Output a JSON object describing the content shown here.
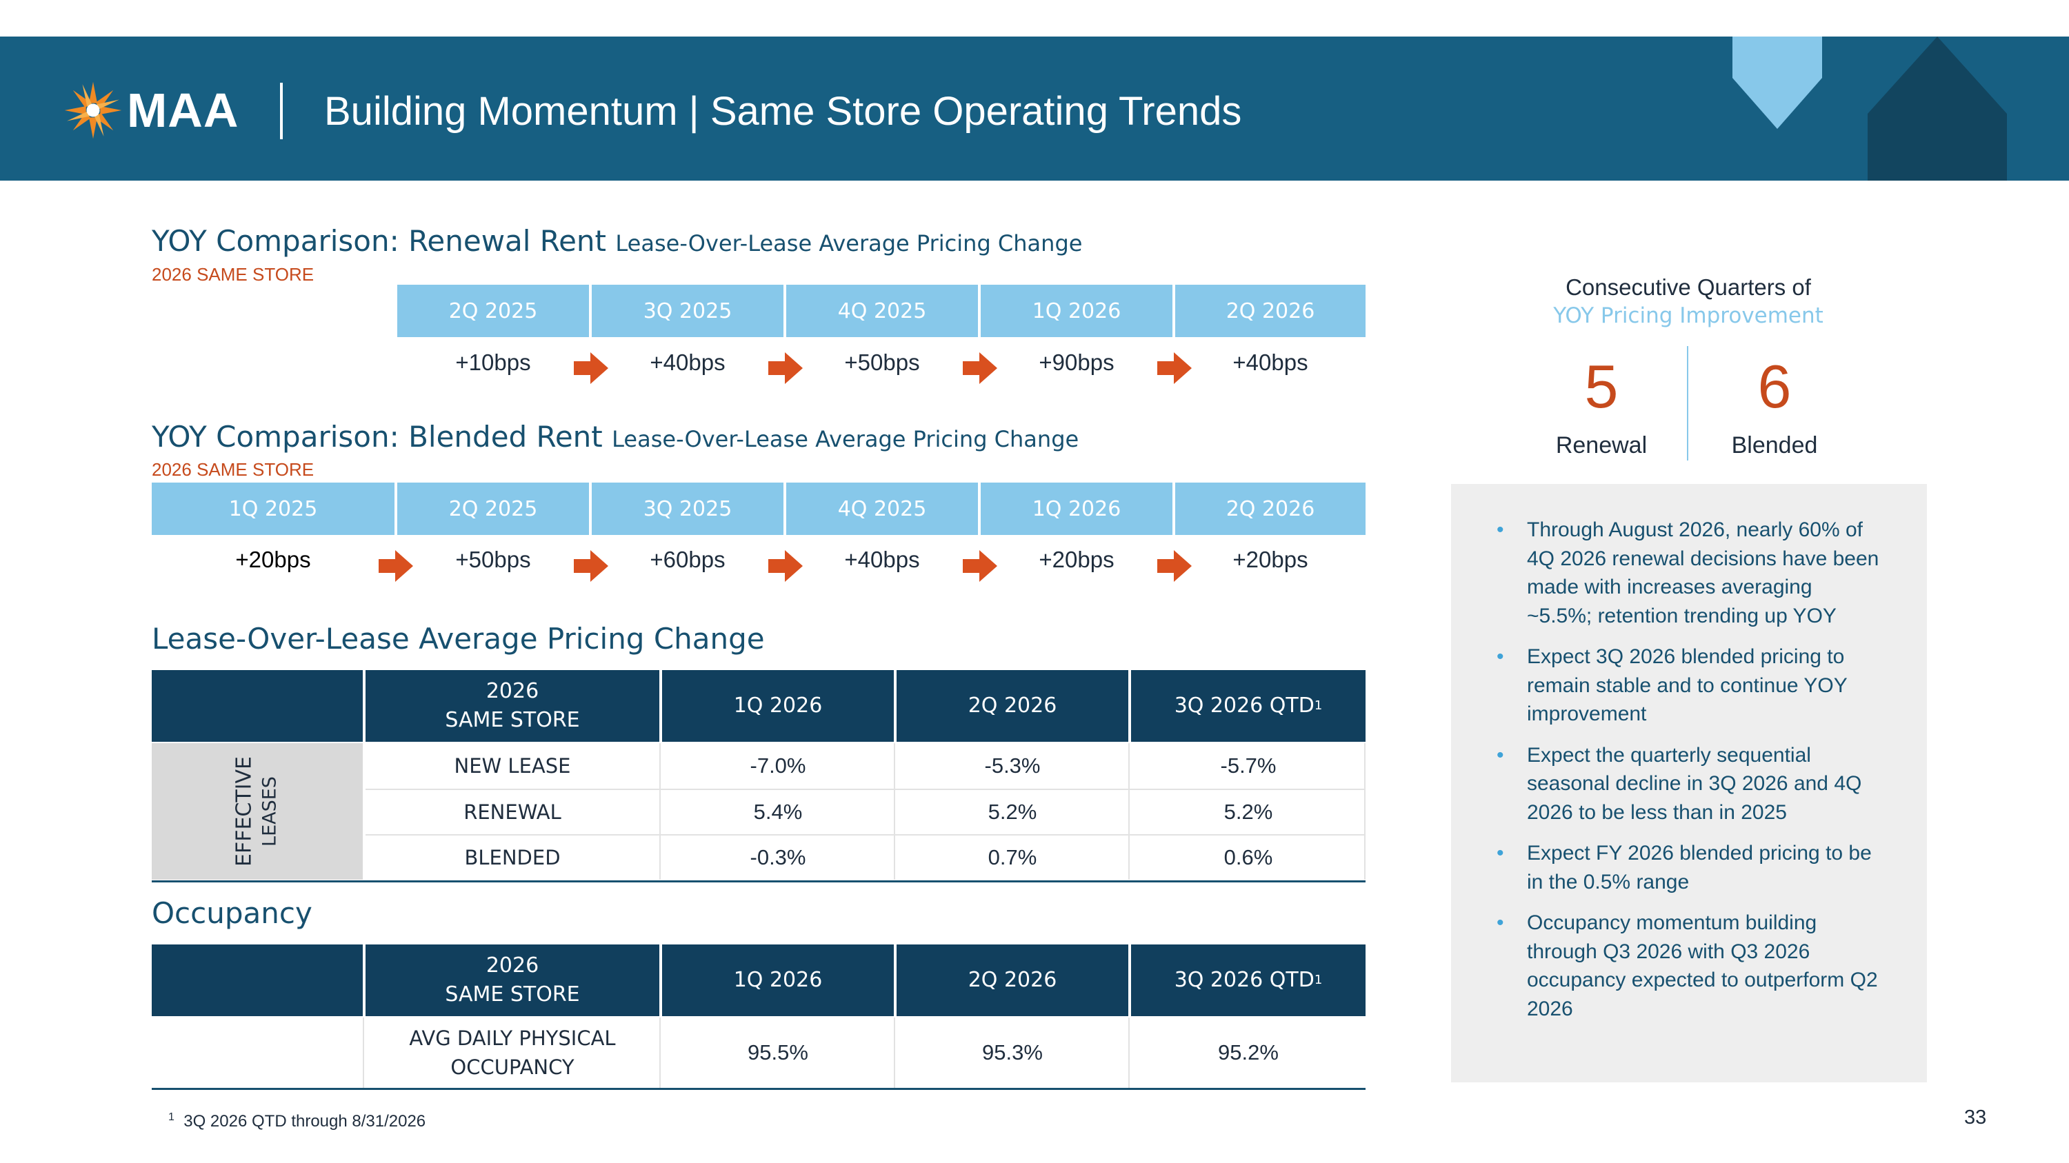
{
  "header": {
    "logo_text": "MAA",
    "title": "Building Momentum | Same Store Operating Trends"
  },
  "renewal": {
    "title": "YOY Comparison: Renewal Rent",
    "subtitle": "Lease-Over-Lease Average Pricing Change",
    "tag": "2026 SAME STORE",
    "quarters": [
      "2Q 2025",
      "3Q 2025",
      "4Q 2025",
      "1Q 2026",
      "2Q 2026"
    ],
    "values": [
      "+10bps",
      "+40bps",
      "+50bps",
      "+90bps",
      "+40bps"
    ]
  },
  "blended": {
    "title": "YOY Comparison: Blended Rent",
    "subtitle": "Lease-Over-Lease Average Pricing Change",
    "tag": "2026 SAME STORE",
    "quarters": [
      "1Q 2025",
      "2Q 2025",
      "3Q 2025",
      "4Q 2025",
      "1Q 2026",
      "2Q 2026"
    ],
    "values": [
      "+20bps",
      "+50bps",
      "+60bps",
      "+40bps",
      "+20bps",
      "+20bps"
    ]
  },
  "pricing_table": {
    "title": "Lease-Over-Lease Average Pricing Change",
    "header_store_line1": "2026",
    "header_store_line2": "SAME STORE",
    "columns": [
      "1Q 2026",
      "2Q 2026",
      "3Q 2026 QTD"
    ],
    "footnote_marker": "1",
    "group_label_line1": "EFFECTIVE",
    "group_label_line2": "LEASES",
    "rows": [
      {
        "label": "NEW LEASE",
        "values": [
          "-7.0%",
          "-5.3%",
          "-5.7%"
        ]
      },
      {
        "label": "RENEWAL",
        "values": [
          "5.4%",
          "5.2%",
          "5.2%"
        ]
      },
      {
        "label": "BLENDED",
        "values": [
          "-0.3%",
          "0.7%",
          "0.6%"
        ]
      }
    ]
  },
  "occupancy_table": {
    "title": "Occupancy",
    "header_store_line1": "2026",
    "header_store_line2": "SAME STORE",
    "columns": [
      "1Q 2026",
      "2Q 2026",
      "3Q 2026 QTD"
    ],
    "footnote_marker": "1",
    "row_label_line1": "AVG DAILY PHYSICAL",
    "row_label_line2": "OCCUPANCY",
    "values": [
      "95.5%",
      "95.3%",
      "95.2%"
    ]
  },
  "footnote": {
    "marker": "1",
    "text": "3Q 2026 QTD through 8/31/2026"
  },
  "page_number": "33",
  "right_panel": {
    "title_line1": "Consecutive Quarters of",
    "title_line2": "YOY Pricing Improvement",
    "renewal_count": "5",
    "renewal_label": "Renewal",
    "blended_count": "6",
    "blended_label": "Blended",
    "bullets": [
      "Through August 2026, nearly 60% of 4Q 2026 renewal decisions have been made with increases averaging ~5.5%; retention trending up YOY",
      "Expect 3Q 2026 blended pricing to remain stable and to continue YOY improvement",
      "Expect the quarterly sequential seasonal decline in 3Q 2026 and 4Q 2026 to be less than in 2025",
      "Expect FY 2026 blended pricing to be in the 0.5% range",
      "Occupancy momentum building through Q3 2026 with Q3 2026 occupancy expected to outperform Q2 2026"
    ]
  },
  "colors": {
    "banner": "#175f82",
    "table_header": "#113f5d",
    "quarter_header": "#87c8ea",
    "accent_orange": "#c64a1c",
    "title_blue": "#17506f",
    "panel_gray": "#eeeeee"
  }
}
